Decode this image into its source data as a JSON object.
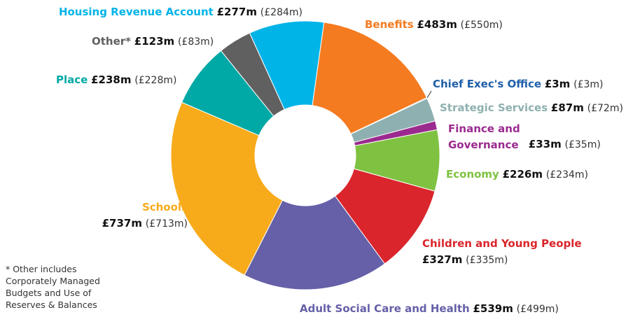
{
  "chart_data": {
    "type": "donut",
    "categories": [
      "Benefits",
      "Chief Exec's Office",
      "Strategic Services",
      "Finance and Governance",
      "Economy",
      "Children and Young People",
      "Adult Social Care and Health",
      "Schools",
      "Place",
      "Other*",
      "Housing Revenue Account"
    ],
    "values": [
      483,
      3,
      87,
      33,
      226,
      327,
      539,
      737,
      238,
      123,
      277
    ],
    "value_labels": [
      "£483m",
      "£3m",
      "£87m",
      "£33m",
      "£226m",
      "£327m",
      "£539m",
      "£737m",
      "£238m",
      "£123m",
      "£277m"
    ],
    "previous_values": [
      550,
      3,
      72,
      35,
      234,
      335,
      499,
      713,
      228,
      83,
      284
    ],
    "previous_labels": [
      "(£550m)",
      "(£3m)",
      "(£72m)",
      "(£35m)",
      "(£234m)",
      "(£335m)",
      "(£499m)",
      "(£713m)",
      "(£228m)",
      "(£83m)",
      "(£284m)"
    ],
    "colors": [
      "#f47b20",
      "#1f5fa8",
      "#8fb0b0",
      "#9b2a8e",
      "#7fc241",
      "#d9252b",
      "#6560a8",
      "#f7ab1b",
      "#00a9a6",
      "#606060",
      "#00b4e8"
    ],
    "footnote": "* Other includes Corporately Managed Budgets and Use of Reserves & Balances"
  }
}
